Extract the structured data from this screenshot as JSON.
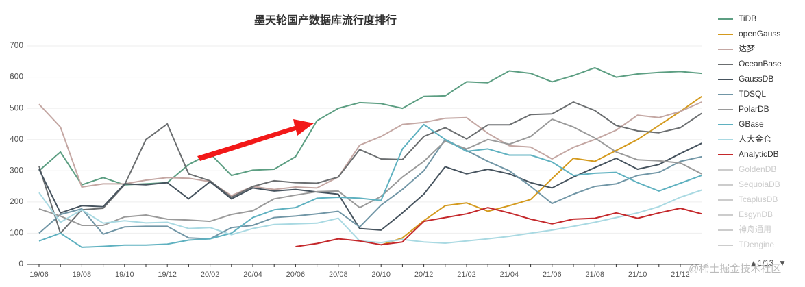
{
  "chart_data": {
    "type": "line",
    "title": "墨天轮国产数据库流行度排行",
    "categories": [
      "19/06",
      null,
      "19/08",
      null,
      "19/10",
      null,
      "19/12",
      null,
      "20/02",
      null,
      "20/04",
      null,
      "20/06",
      null,
      "20/08",
      null,
      "20/10",
      null,
      "20/12",
      null,
      "21/02",
      null,
      "21/04",
      null,
      "21/06",
      null,
      "21/08",
      null,
      "21/10",
      null,
      "21/12",
      null
    ],
    "ylim": [
      0,
      700
    ],
    "yticks": [
      0,
      100,
      200,
      300,
      400,
      500,
      600,
      700
    ],
    "grid": true,
    "legend": "right",
    "series": [
      {
        "name": "TiDB",
        "color": "#5c9e82",
        "values": [
          300,
          360,
          255,
          278,
          255,
          258,
          262,
          320,
          355,
          285,
          302,
          305,
          345,
          460,
          500,
          518,
          515,
          500,
          538,
          540,
          585,
          582,
          620,
          612,
          585,
          605,
          630,
          600,
          610,
          615,
          618,
          612
        ]
      },
      {
        "name": "openGauss",
        "color": "#d49a1e",
        "values": [
          null,
          null,
          null,
          null,
          null,
          null,
          null,
          null,
          null,
          null,
          null,
          null,
          null,
          null,
          null,
          null,
          62,
          85,
          140,
          188,
          197,
          170,
          188,
          208,
          275,
          340,
          330,
          365,
          400,
          445,
          490,
          538
        ]
      },
      {
        "name": "达梦",
        "color": "#c4a7a3",
        "values": [
          513,
          440,
          248,
          258,
          258,
          270,
          278,
          276,
          265,
          220,
          250,
          240,
          248,
          245,
          280,
          382,
          410,
          448,
          455,
          468,
          470,
          420,
          380,
          376,
          338,
          375,
          400,
          430,
          478,
          470,
          490,
          520
        ]
      },
      {
        "name": "OceanBase",
        "color": "#6b6e70",
        "values": [
          315,
          100,
          175,
          180,
          255,
          400,
          450,
          290,
          268,
          215,
          250,
          268,
          262,
          260,
          280,
          368,
          338,
          336,
          410,
          438,
          402,
          447,
          447,
          480,
          482,
          520,
          493,
          445,
          428,
          422,
          438,
          484
        ]
      },
      {
        "name": "GaussDB",
        "color": "#46535e",
        "values": [
          305,
          165,
          188,
          185,
          258,
          255,
          262,
          210,
          265,
          210,
          245,
          235,
          240,
          232,
          225,
          115,
          110,
          165,
          225,
          313,
          290,
          305,
          290,
          262,
          245,
          280,
          310,
          340,
          305,
          320,
          355,
          388
        ]
      },
      {
        "name": "TDSQL",
        "color": "#7196a6",
        "values": [
          100,
          160,
          178,
          97,
          120,
          122,
          122,
          85,
          82,
          118,
          125,
          150,
          155,
          162,
          170,
          120,
          190,
          240,
          300,
          400,
          365,
          330,
          300,
          250,
          195,
          225,
          250,
          258,
          285,
          295,
          330,
          345
        ]
      },
      {
        "name": "PolarDB",
        "color": "#9a9a9a",
        "values": [
          178,
          155,
          125,
          125,
          152,
          158,
          145,
          142,
          138,
          160,
          172,
          210,
          222,
          233,
          235,
          182,
          218,
          280,
          330,
          395,
          370,
          400,
          385,
          410,
          465,
          440,
          405,
          360,
          335,
          332,
          325,
          290
        ]
      },
      {
        "name": "GBase",
        "color": "#5fb1c0",
        "values": [
          75,
          100,
          55,
          58,
          62,
          62,
          65,
          78,
          82,
          100,
          150,
          175,
          182,
          212,
          215,
          212,
          205,
          370,
          448,
          400,
          362,
          370,
          350,
          350,
          328,
          285,
          292,
          295,
          262,
          235,
          260,
          285
        ]
      },
      {
        "name": "人大金仓",
        "color": "#a9d9e2",
        "values": [
          230,
          135,
          175,
          132,
          140,
          133,
          135,
          115,
          118,
          95,
          115,
          128,
          130,
          132,
          148,
          75,
          70,
          80,
          72,
          68,
          75,
          82,
          90,
          100,
          110,
          122,
          135,
          150,
          165,
          185,
          215,
          238
        ]
      },
      {
        "name": "AnalyticDB",
        "color": "#c4282b",
        "values": [
          null,
          null,
          null,
          null,
          null,
          null,
          null,
          null,
          null,
          null,
          null,
          null,
          57,
          67,
          82,
          75,
          63,
          72,
          138,
          150,
          162,
          182,
          165,
          145,
          130,
          145,
          148,
          165,
          148,
          165,
          180,
          162
        ]
      }
    ],
    "legend_inactive": [
      "GoldenDB",
      "SequoiaDB",
      "TcaplusDB",
      "EsgynDB",
      "神舟通用",
      "TDengine"
    ],
    "legend_page": "1/13",
    "watermark": "@稀土掘金技术社区"
  }
}
